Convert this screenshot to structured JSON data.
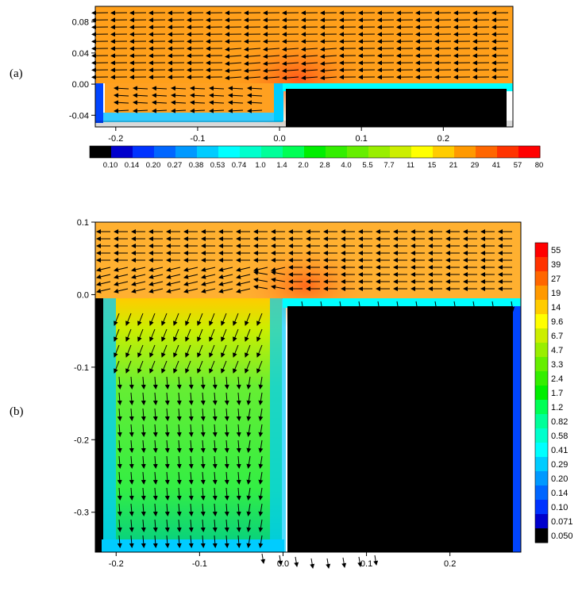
{
  "chart_data": [
    {
      "type": "heatmap",
      "panel_label": "(a)",
      "xlim": [
        -0.225,
        0.285
      ],
      "ylim": [
        -0.055,
        0.1
      ],
      "xticks": [
        "-0.2",
        "-0.1",
        "0.0",
        "0.1",
        "0.2"
      ],
      "yticks": [
        "0.08",
        "0.04",
        "0.00",
        "-0.04"
      ],
      "colorbar": {
        "orientation": "horizontal",
        "labels": [
          "0.10",
          "0.14",
          "0.20",
          "0.27",
          "0.38",
          "0.53",
          "0.74",
          "1.0",
          "1.4",
          "2.0",
          "2.8",
          "4.0",
          "5.5",
          "7.7",
          "11",
          "15",
          "21",
          "29",
          "41",
          "57",
          "80"
        ],
        "colors": [
          "#000000",
          "#0000cc",
          "#0033ff",
          "#0066ff",
          "#0099ff",
          "#00ccff",
          "#00ffff",
          "#00ffcc",
          "#00ff99",
          "#00ff55",
          "#00ee00",
          "#33ee00",
          "#66ee00",
          "#99ee00",
          "#ccee00",
          "#ffff00",
          "#ffcc00",
          "#ff9900",
          "#ff6600",
          "#ff3300",
          "#ff0000"
        ]
      },
      "regions": {
        "free_stream": "#ff9f1a",
        "cavity": "#ffb030",
        "wall_low": "#000000"
      },
      "arrows": "horizontal leftward flow above 0.0, weak recirculation inside cavity -0.21..-0.01"
    },
    {
      "type": "heatmap",
      "panel_label": "(b)",
      "xlim": [
        -0.225,
        0.285
      ],
      "ylim": [
        -0.355,
        0.1
      ],
      "xticks": [
        "-0.2",
        "-0.1",
        "0.0",
        "0.1",
        "0.2"
      ],
      "yticks": [
        "0.1",
        "0.0",
        "-0.1",
        "-0.2",
        "-0.3"
      ],
      "colorbar": {
        "orientation": "vertical",
        "labels": [
          "55",
          "39",
          "27",
          "19",
          "14",
          "9.6",
          "6.7",
          "4.7",
          "3.3",
          "2.4",
          "1.7",
          "1.2",
          "0.82",
          "0.58",
          "0.41",
          "0.29",
          "0.20",
          "0.14",
          "0.10",
          "0.071",
          "0.050"
        ],
        "colors": [
          "#ff0000",
          "#ff3300",
          "#ff6600",
          "#ff9900",
          "#ffcc00",
          "#ffff00",
          "#ccee00",
          "#99ee00",
          "#66ee00",
          "#33ee00",
          "#00ee00",
          "#00ff55",
          "#00ff99",
          "#00ffcc",
          "#00ffff",
          "#00ccff",
          "#0099ff",
          "#0066ff",
          "#0033ff",
          "#0000cc",
          "#000000"
        ]
      },
      "regions": {
        "free_stream": "#ffb030",
        "cavity": "#66ee33",
        "wall_low": "#000000"
      },
      "arrows": "leftward flow above 0.0, downward flow inside deep cavity -0.21..-0.01"
    }
  ]
}
